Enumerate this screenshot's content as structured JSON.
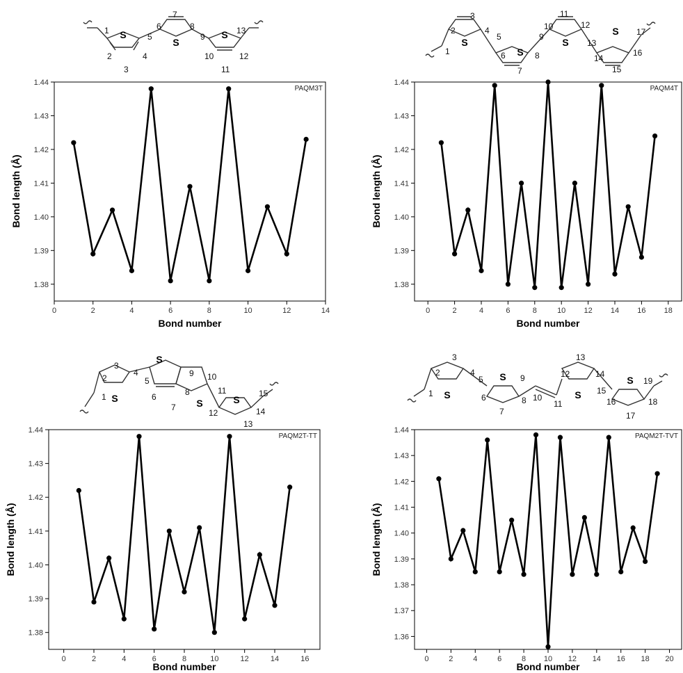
{
  "chart_data": [
    {
      "type": "line",
      "panel_label": "PAQM3T",
      "xlabel": "Bond number",
      "ylabel": "Bond length (Å)",
      "xlim": [
        0,
        14
      ],
      "ylim": [
        1.375,
        1.44
      ],
      "xticks": [
        0,
        2,
        4,
        6,
        8,
        10,
        12,
        14
      ],
      "yticks": [
        1.38,
        1.39,
        1.4,
        1.41,
        1.42,
        1.43,
        1.44
      ],
      "grid": false,
      "x": [
        1,
        2,
        3,
        4,
        5,
        6,
        7,
        8,
        9,
        10,
        11,
        12,
        13
      ],
      "y": [
        1.422,
        1.389,
        1.402,
        1.384,
        1.438,
        1.381,
        1.409,
        1.381,
        1.438,
        1.384,
        1.403,
        1.389,
        1.423
      ],
      "structure": {
        "rings": 3,
        "sulfur_label": "S",
        "bond_numbers": [
          "1",
          "2",
          "3",
          "4",
          "5",
          "6",
          "7",
          "8",
          "9",
          "10",
          "11",
          "12",
          "13"
        ]
      }
    },
    {
      "type": "line",
      "panel_label": "PAQM4T",
      "xlabel": "Bond number",
      "ylabel": "Bond length (Å)",
      "xlim": [
        -1,
        19
      ],
      "ylim": [
        1.375,
        1.44
      ],
      "xticks": [
        0,
        2,
        4,
        6,
        8,
        10,
        12,
        14,
        16,
        18
      ],
      "yticks": [
        1.38,
        1.39,
        1.4,
        1.41,
        1.42,
        1.43,
        1.44
      ],
      "grid": false,
      "x": [
        1,
        2,
        3,
        4,
        5,
        6,
        7,
        8,
        9,
        10,
        11,
        12,
        13,
        14,
        15,
        16,
        17
      ],
      "y": [
        1.422,
        1.389,
        1.402,
        1.384,
        1.439,
        1.38,
        1.41,
        1.379,
        1.44,
        1.379,
        1.41,
        1.38,
        1.439,
        1.383,
        1.403,
        1.388,
        1.424
      ],
      "structure": {
        "rings": 4,
        "sulfur_label": "S",
        "bond_numbers": [
          "1",
          "2",
          "3",
          "4",
          "5",
          "6",
          "7",
          "8",
          "9",
          "10",
          "11",
          "12",
          "13",
          "14",
          "15",
          "16",
          "17"
        ]
      }
    },
    {
      "type": "line",
      "panel_label": "PAQM2T-TT",
      "xlabel": "Bond number",
      "ylabel": "Bond length (Å)",
      "xlim": [
        -1,
        17
      ],
      "ylim": [
        1.375,
        1.44
      ],
      "xticks": [
        0,
        2,
        4,
        6,
        8,
        10,
        12,
        14,
        16
      ],
      "yticks": [
        1.38,
        1.39,
        1.4,
        1.41,
        1.42,
        1.43,
        1.44
      ],
      "grid": false,
      "x": [
        1,
        2,
        3,
        4,
        5,
        6,
        7,
        8,
        9,
        10,
        11,
        12,
        13,
        14,
        15
      ],
      "y": [
        1.422,
        1.389,
        1.402,
        1.384,
        1.438,
        1.381,
        1.41,
        1.392,
        1.411,
        1.38,
        1.438,
        1.384,
        1.403,
        1.388,
        1.423
      ],
      "structure": {
        "rings": 4,
        "sulfur_label": "S",
        "bond_numbers": [
          "1",
          "2",
          "3",
          "4",
          "5",
          "6",
          "7",
          "8",
          "9",
          "10",
          "11",
          "12",
          "13",
          "14",
          "15"
        ]
      }
    },
    {
      "type": "line",
      "panel_label": "PAQM2T-TVT",
      "xlabel": "Bond number",
      "ylabel": "Bond length (Å)",
      "xlim": [
        -1,
        21
      ],
      "ylim": [
        1.355,
        1.44
      ],
      "xticks": [
        0,
        2,
        4,
        6,
        8,
        10,
        12,
        14,
        16,
        18,
        20
      ],
      "yticks": [
        1.36,
        1.37,
        1.38,
        1.39,
        1.4,
        1.41,
        1.42,
        1.43,
        1.44
      ],
      "grid": false,
      "x": [
        1,
        2,
        3,
        4,
        5,
        6,
        7,
        8,
        9,
        10,
        11,
        12,
        13,
        14,
        15,
        16,
        17,
        18,
        19
      ],
      "y": [
        1.421,
        1.39,
        1.401,
        1.385,
        1.436,
        1.385,
        1.405,
        1.384,
        1.438,
        1.356,
        1.437,
        1.384,
        1.406,
        1.384,
        1.437,
        1.385,
        1.402,
        1.389,
        1.423
      ],
      "structure": {
        "rings": 4,
        "sulfur_label": "S",
        "bond_numbers": [
          "1",
          "2",
          "3",
          "4",
          "5",
          "6",
          "7",
          "8",
          "9",
          "10",
          "11",
          "12",
          "13",
          "14",
          "15",
          "16",
          "17",
          "18",
          "19"
        ]
      }
    }
  ]
}
